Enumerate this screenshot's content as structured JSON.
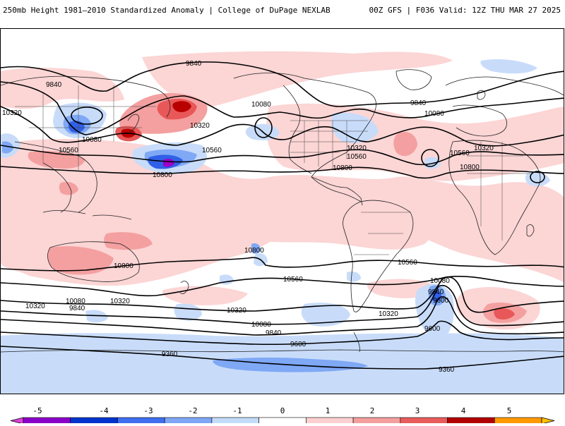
{
  "header": {
    "title_left": "250mb Height 1981–2010 Standardized Anomaly | College of DuPage NEXLAB",
    "title_right": "00Z GFS | F036 Valid: 12Z THU MAR 27 2025"
  },
  "contour_labels": [
    "9840",
    "10320",
    "10080",
    "10560",
    "10800",
    "10320",
    "10080",
    "10560",
    "9840",
    "10080",
    "10320",
    "10560",
    "10800",
    "9840",
    "10080",
    "10320",
    "10560",
    "10800",
    "10800",
    "10800",
    "10560",
    "10560",
    "10320",
    "10080",
    "9840",
    "9600",
    "9600",
    "9360",
    "10800",
    "10560",
    "10320",
    "10080",
    "9840",
    "9600",
    "9360",
    "10320",
    "10080",
    "9840",
    "10320"
  ],
  "colorbar": {
    "tick_labels": [
      "-5",
      "-4",
      "-3",
      "-2",
      "-1",
      "0",
      "1",
      "2",
      "3",
      "4",
      "5"
    ],
    "colors": [
      "#e040e0",
      "#8a00c8",
      "#0033cc",
      "#3f6ef0",
      "#7fa6f5",
      "#c3dcfa",
      "#ffffff",
      "#fcd0d0",
      "#f49e9e",
      "#e85c5c",
      "#b00000",
      "#ff9900",
      "#ffc000"
    ]
  },
  "anomaly_palette": {
    "pos1": "#fcd5d5",
    "pos2": "#f4a0a0",
    "pos3": "#e85858",
    "pos4": "#b80000",
    "neg1": "#c8dcfa",
    "neg2": "#7fa8f5",
    "neg3": "#3060e8",
    "neg4": "#1a2fc0",
    "neg5": "#9a00c8"
  }
}
